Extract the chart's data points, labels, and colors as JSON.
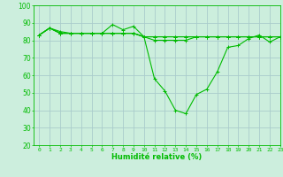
{
  "xlabel": "Humidité relative (%)",
  "background_color": "#cceedd",
  "grid_color": "#aacccc",
  "line_color": "#00bb00",
  "ylim": [
    20,
    100
  ],
  "xlim": [
    -0.5,
    23
  ],
  "yticks": [
    20,
    30,
    40,
    50,
    60,
    70,
    80,
    90,
    100
  ],
  "xticks": [
    0,
    1,
    2,
    3,
    4,
    5,
    6,
    7,
    8,
    9,
    10,
    11,
    12,
    13,
    14,
    15,
    16,
    17,
    18,
    19,
    20,
    21,
    22,
    23
  ],
  "series": [
    [
      83,
      87,
      84,
      84,
      84,
      84,
      84,
      89,
      86,
      88,
      82,
      82,
      82,
      82,
      82,
      82,
      82,
      82,
      82,
      82,
      82,
      82,
      82,
      82
    ],
    [
      83,
      87,
      84,
      84,
      84,
      84,
      84,
      84,
      84,
      84,
      82,
      82,
      82,
      82,
      82,
      82,
      82,
      82,
      82,
      82,
      82,
      82,
      82,
      82
    ],
    [
      83,
      87,
      84,
      84,
      84,
      84,
      84,
      84,
      84,
      84,
      82,
      80,
      80,
      80,
      80,
      82,
      82,
      82,
      82,
      82,
      82,
      82,
      82,
      82
    ],
    [
      83,
      87,
      85,
      84,
      84,
      84,
      84,
      84,
      84,
      84,
      82,
      58,
      51,
      40,
      38,
      49,
      52,
      62,
      76,
      77,
      81,
      83,
      79,
      82
    ]
  ]
}
